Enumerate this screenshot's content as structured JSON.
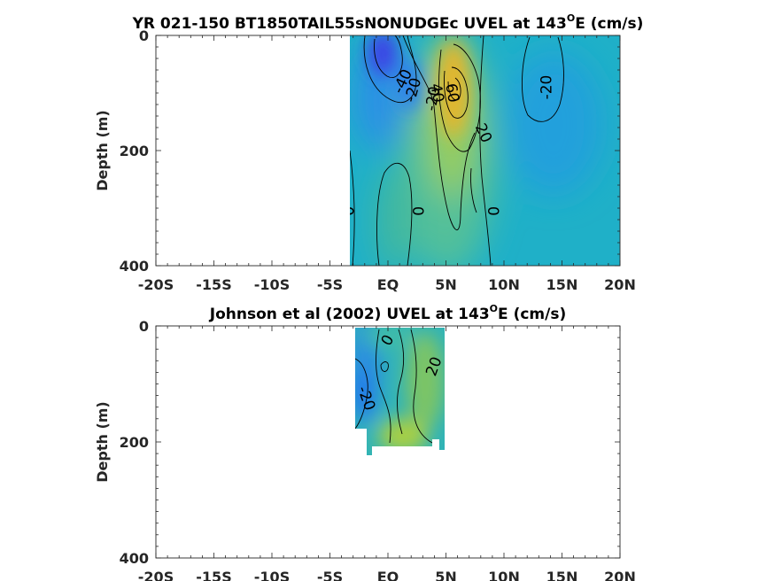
{
  "chart_data": [
    {
      "type": "heatmap",
      "title_main": "YR 021-150 BT1850TAIL55sNONUDGEc UVEL at 143",
      "title_sup": "O",
      "title_end": "E (cm/s)",
      "ylabel": "Depth (m)",
      "xlim": [
        -20,
        20
      ],
      "ylim": [
        0,
        400
      ],
      "y_reversed": true,
      "xticks": [
        -20,
        -15,
        -10,
        -5,
        0,
        5,
        10,
        15,
        20
      ],
      "xtick_labels": [
        "-20S",
        "-15S",
        "-10S",
        "-5S",
        "EQ",
        "5N",
        "10N",
        "15N",
        "20N"
      ],
      "yticks": [
        0,
        200,
        400
      ],
      "ytick_labels": [
        "0",
        "200",
        "400"
      ],
      "data_extent": {
        "lat": [
          -3.5,
          20
        ],
        "depth": [
          0,
          400
        ]
      },
      "features": [
        {
          "lat": -0.5,
          "depth": 20,
          "value": -65
        },
        {
          "lat": 1.5,
          "depth": 80,
          "value": -30
        },
        {
          "lat": 6,
          "depth": 90,
          "value": 65
        },
        {
          "lat": 6,
          "depth": 250,
          "value": 35
        },
        {
          "lat": 0.5,
          "depth": 300,
          "value": 15
        },
        {
          "lat": 12,
          "depth": 150,
          "value": -22
        }
      ],
      "contour_labels": [
        {
          "text": "-40",
          "lat": 1.3,
          "depth": 80,
          "angle": -65
        },
        {
          "text": "-20",
          "lat": 2.2,
          "depth": 95,
          "angle": -75
        },
        {
          "text": "-20",
          "lat": 3.9,
          "depth": 110,
          "angle": -80
        },
        {
          "text": "40",
          "lat": 4.2,
          "depth": 100,
          "angle": 80
        },
        {
          "text": "60",
          "lat": 5.5,
          "depth": 100,
          "angle": 80
        },
        {
          "text": "20",
          "lat": 8.2,
          "depth": 170,
          "angle": 65
        },
        {
          "text": "-20",
          "lat": 13.7,
          "depth": 90,
          "angle": -90
        },
        {
          "text": "0",
          "lat": -3.5,
          "depth": 305,
          "angle": 90
        },
        {
          "text": "0",
          "lat": 2.5,
          "depth": 305,
          "angle": 90
        },
        {
          "text": "0",
          "lat": 9.0,
          "depth": 305,
          "angle": 90
        }
      ]
    },
    {
      "type": "heatmap",
      "title_main": "Johnson et al (2002) UVEL at 143",
      "title_sup": "O",
      "title_end": "E (cm/s)",
      "ylabel": "Depth (m)",
      "xlim": [
        -20,
        20
      ],
      "ylim": [
        0,
        400
      ],
      "y_reversed": true,
      "xticks": [
        -20,
        -15,
        -10,
        -5,
        0,
        5,
        10,
        15,
        20
      ],
      "xtick_labels": [
        "-20S",
        "-15S",
        "-10S",
        "-5S",
        "EQ",
        "5N",
        "10N",
        "15N",
        "20N"
      ],
      "yticks": [
        0,
        200,
        400
      ],
      "ytick_labels": [
        "0",
        "200",
        "400"
      ],
      "data_extent": {
        "lat": [
          -3,
          5
        ],
        "depth": [
          0,
          215
        ]
      },
      "features": [
        {
          "lat": -1,
          "depth": 60,
          "value": -22
        },
        {
          "lat": -2,
          "depth": 130,
          "value": -30
        },
        {
          "lat": 4,
          "depth": 80,
          "value": 25
        },
        {
          "lat": 2,
          "depth": 195,
          "value": 45
        },
        {
          "lat": 0.5,
          "depth": 20,
          "value": 5
        }
      ],
      "contour_labels": [
        {
          "text": "0",
          "lat": 0.0,
          "depth": 25,
          "angle": -60
        },
        {
          "text": "20",
          "lat": 4.0,
          "depth": 70,
          "angle": -70
        },
        {
          "text": "-20",
          "lat": -1.9,
          "depth": 125,
          "angle": 70
        }
      ]
    }
  ]
}
